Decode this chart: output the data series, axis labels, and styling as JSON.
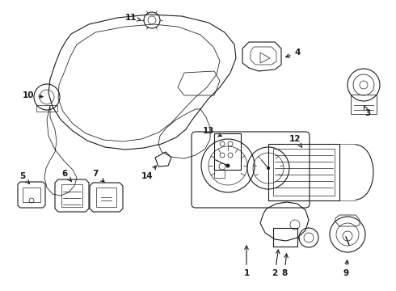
{
  "bg_color": "#ffffff",
  "line_color": "#1a1a1a",
  "lw": 0.8
}
